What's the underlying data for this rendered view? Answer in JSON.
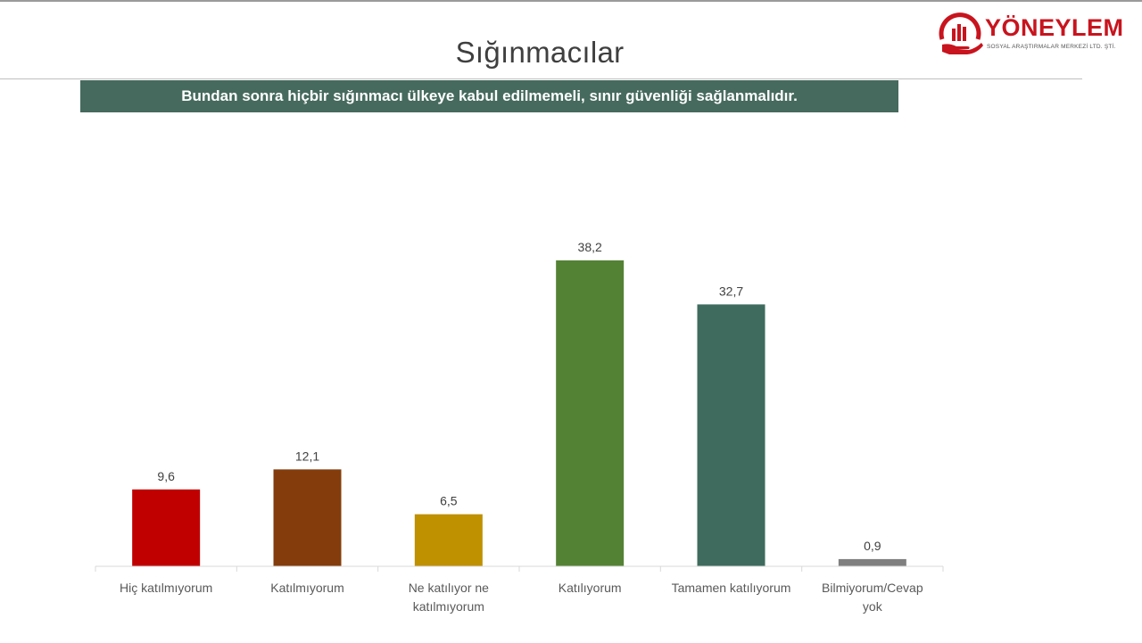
{
  "header": {
    "title": "Sığınmacılar",
    "question": "Bundan sonra hiçbir sığınmacı ülkeye kabul edilmemeli, sınır güvenliği sağlanmalıdır."
  },
  "logo": {
    "name": "YÖNEYLEM",
    "subtitle": "SOSYAL ARAŞTIRMALAR MERKEZİ LTD. ŞTİ.",
    "icon": "bar-chart-in-hand-logo-icon",
    "color": "#c8141e"
  },
  "chart_data": {
    "type": "bar",
    "categories": [
      [
        "Hiç katılmıyorum"
      ],
      [
        "Katılmıyorum"
      ],
      [
        "Ne katılıyor ne",
        "katılmıyorum"
      ],
      [
        "Katılıyorum"
      ],
      [
        "Tamamen katılıyorum"
      ],
      [
        "Bilmiyorum/Cevap",
        "yok"
      ]
    ],
    "values": [
      9.6,
      12.1,
      6.5,
      38.2,
      32.7,
      0.9
    ],
    "value_labels": [
      "9,6",
      "12,1",
      "6,5",
      "38,2",
      "32,7",
      "0,9"
    ],
    "colors": [
      "#c00000",
      "#843c0c",
      "#bf9000",
      "#548235",
      "#3e6b5e",
      "#7f7f7f"
    ],
    "title": "",
    "xlabel": "",
    "ylabel": "",
    "ylim": [
      0,
      40
    ],
    "grid": false,
    "legend": "none"
  }
}
